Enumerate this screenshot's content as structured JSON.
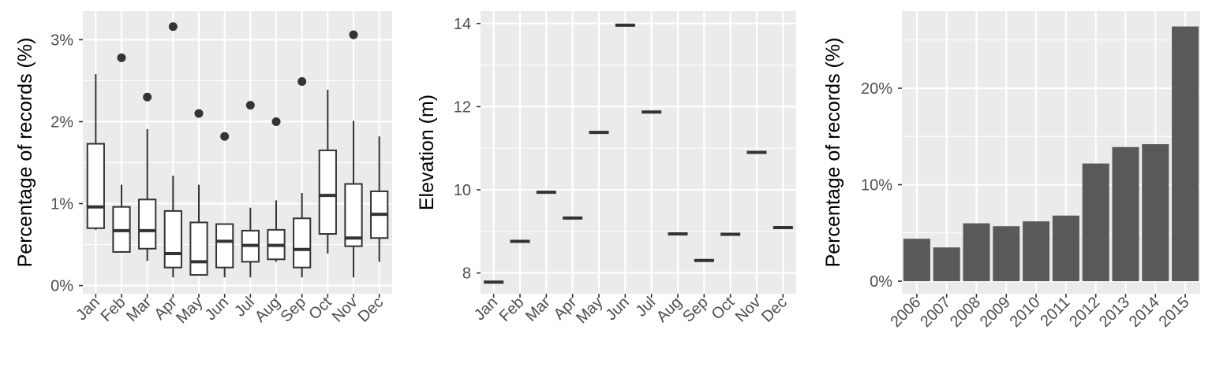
{
  "colors": {
    "panel_background": "#ebebeb",
    "grid": "#ffffff",
    "box_fill": "#ffffff",
    "box_stroke": "#333333",
    "bar_fill": "#595959",
    "point": "#333333",
    "tick_label": "#4d4d4d"
  },
  "chart_data": [
    {
      "type": "box",
      "xlabel": "",
      "ylabel": "Percentage of records (%)",
      "categories": [
        "Jan",
        "Feb",
        "Mar",
        "Apr",
        "May",
        "Jun",
        "Jul",
        "Aug",
        "Sep",
        "Oct",
        "Nov",
        "Dec"
      ],
      "ylim": [
        -0.1,
        3.35
      ],
      "yticks": [
        0,
        1,
        2,
        3
      ],
      "ytick_labels": [
        "0%",
        "1%",
        "2%",
        "3%"
      ],
      "boxes": [
        {
          "min": 0.68,
          "q1": 0.7,
          "median": 0.96,
          "q3": 1.73,
          "max": 2.58,
          "outliers": []
        },
        {
          "min": 0.4,
          "q1": 0.41,
          "median": 0.67,
          "q3": 0.96,
          "max": 1.23,
          "outliers": [
            2.78
          ]
        },
        {
          "min": 0.3,
          "q1": 0.45,
          "median": 0.67,
          "q3": 1.05,
          "max": 1.91,
          "outliers": [
            2.3
          ]
        },
        {
          "min": 0.1,
          "q1": 0.22,
          "median": 0.39,
          "q3": 0.91,
          "max": 1.34,
          "outliers": [
            3.16
          ]
        },
        {
          "min": 0.12,
          "q1": 0.13,
          "median": 0.29,
          "q3": 0.77,
          "max": 1.23,
          "outliers": [
            2.1
          ]
        },
        {
          "min": 0.1,
          "q1": 0.22,
          "median": 0.54,
          "q3": 0.75,
          "max": 0.76,
          "outliers": [
            1.82
          ]
        },
        {
          "min": 0.1,
          "q1": 0.29,
          "median": 0.49,
          "q3": 0.67,
          "max": 0.95,
          "outliers": [
            2.2
          ]
        },
        {
          "min": 0.29,
          "q1": 0.32,
          "median": 0.49,
          "q3": 0.68,
          "max": 1.04,
          "outliers": [
            2.0
          ]
        },
        {
          "min": 0.1,
          "q1": 0.22,
          "median": 0.44,
          "q3": 0.82,
          "max": 1.13,
          "outliers": [
            2.49
          ]
        },
        {
          "min": 0.39,
          "q1": 0.63,
          "median": 1.1,
          "q3": 1.65,
          "max": 2.39,
          "outliers": []
        },
        {
          "min": 0.1,
          "q1": 0.48,
          "median": 0.58,
          "q3": 1.24,
          "max": 2.01,
          "outliers": [
            3.06
          ]
        },
        {
          "min": 0.29,
          "q1": 0.58,
          "median": 0.87,
          "q3": 1.15,
          "max": 1.82,
          "outliers": []
        }
      ],
      "grid": true
    },
    {
      "type": "box",
      "xlabel": "",
      "ylabel": "Elevation (m)",
      "categories": [
        "Jan",
        "Feb",
        "Mar",
        "Apr",
        "May",
        "Jun",
        "Jul",
        "Aug",
        "Sep",
        "Oct",
        "Nov",
        "Dec"
      ],
      "ylim": [
        7.5,
        14.3
      ],
      "yticks": [
        8,
        10,
        12,
        14
      ],
      "ytick_labels": [
        "8",
        "10",
        "12",
        "14"
      ],
      "values": [
        7.78,
        8.76,
        9.94,
        9.32,
        11.38,
        13.96,
        11.87,
        8.94,
        8.3,
        8.93,
        10.9,
        9.09
      ],
      "grid": true
    },
    {
      "type": "bar",
      "xlabel": "",
      "ylabel": "Percentage of records (%)",
      "categories": [
        "2006",
        "2007",
        "2008",
        "2009",
        "2010",
        "2011",
        "2012",
        "2013",
        "2014",
        "2015"
      ],
      "values": [
        4.4,
        3.5,
        6.0,
        5.7,
        6.2,
        6.8,
        12.2,
        13.9,
        14.2,
        26.4
      ],
      "ylim": [
        -1.3,
        28.0
      ],
      "yticks": [
        0,
        10,
        20
      ],
      "ytick_labels": [
        "0%",
        "10%",
        "20%"
      ],
      "grid": true
    }
  ]
}
